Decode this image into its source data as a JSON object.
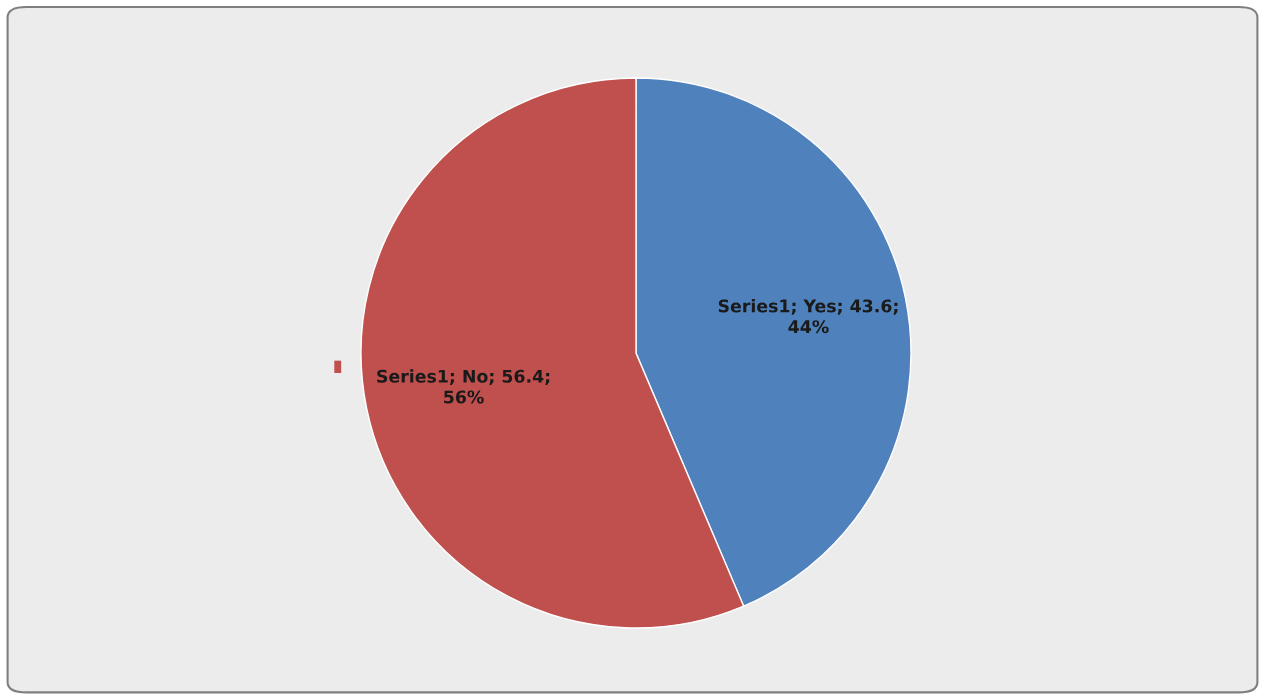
{
  "chart_data": {
    "type": "pie",
    "categories": [
      null,
      null
    ],
    "values": [
      43.6,
      56.4
    ],
    "colors": [
      "#4f81bd",
      "#c0504d"
    ],
    "value_labels": [
      "Series1; Yes; 43.6;\n44%",
      "Series1; No; 56.4;\n56%"
    ],
    "legend": false
  }
}
